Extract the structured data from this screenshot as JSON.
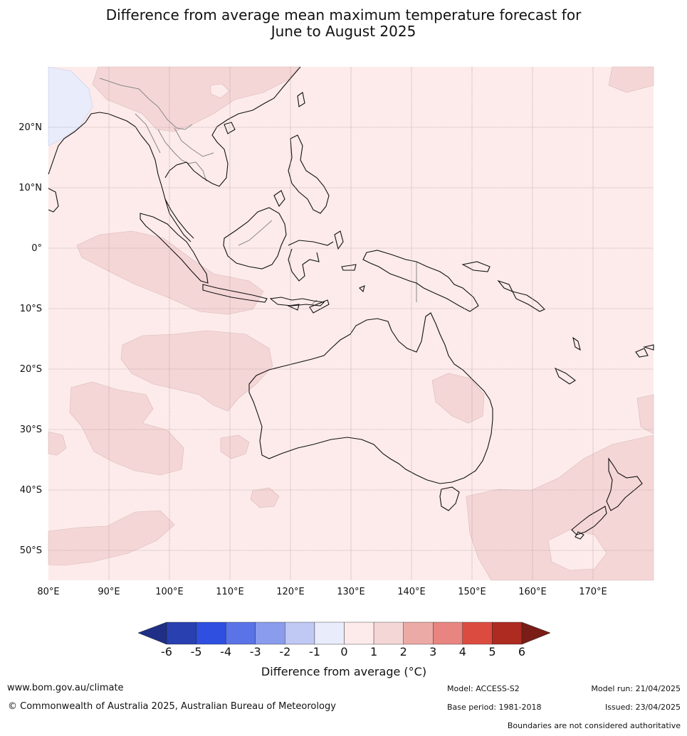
{
  "title_line1": "Difference from average mean maximum temperature forecast for",
  "title_line2": "June to August 2025",
  "longitude_labels": [
    "80°E",
    "90°E",
    "100°E",
    "110°E",
    "120°E",
    "130°E",
    "140°E",
    "150°E",
    "160°E",
    "170°E"
  ],
  "latitude_labels": [
    "20°N",
    "10°N",
    "0°",
    "10°S",
    "20°S",
    "30°S",
    "40°S",
    "50°S"
  ],
  "colorbar": {
    "ticks": [
      "-6",
      "-5",
      "-4",
      "-3",
      "-2",
      "-1",
      "0",
      "1",
      "2",
      "3",
      "4",
      "5",
      "6"
    ],
    "colors": [
      "#1f2f85",
      "#2840b0",
      "#2f4fe0",
      "#5a73e6",
      "#8a9cec",
      "#c0c8f4",
      "#e8ecfb",
      "#fcebea",
      "#f5d6d6",
      "#ecaaa6",
      "#e88580",
      "#dc4b40",
      "#ae2b22",
      "#7a1d17"
    ],
    "label": "Difference from average (°C)"
  },
  "map_colors": {
    "ocean_base": "#fcebea",
    "warm_1_2": "#f5d6d6",
    "cool_0_1": "#e8ecfb",
    "coast": "#111111",
    "border": "#888888",
    "grid": "#9a8a8a"
  },
  "footer": {
    "website": "www.bom.gov.au/climate",
    "copyright": "© Commonwealth of Australia 2025, Australian Bureau of Meteorology",
    "model": "Model: ACCESS-S2",
    "base_period": "Base period: 1981-2018",
    "model_run": "Model run: 21/04/2025",
    "issued": "Issued: 23/04/2025",
    "disclaimer": "Boundaries are not considered authoritative"
  }
}
